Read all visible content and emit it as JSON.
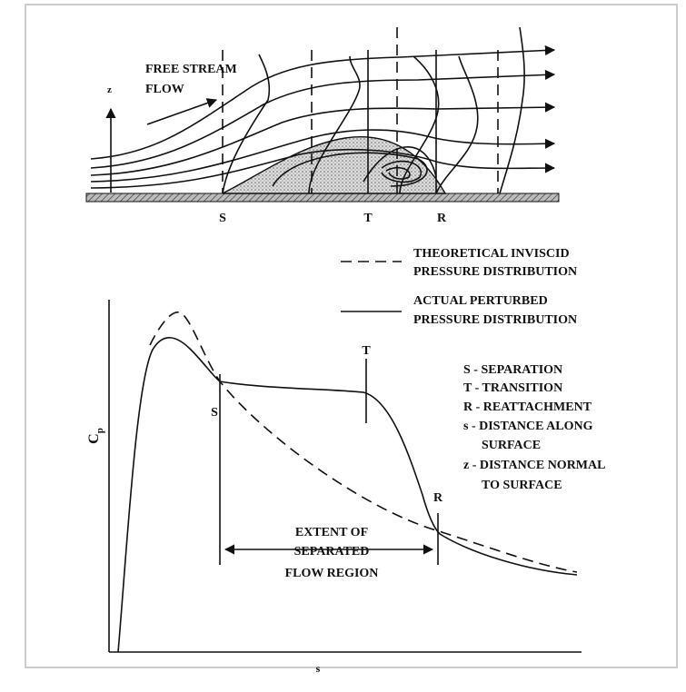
{
  "flow_diagram": {
    "stream_label": [
      "FREE STREAM",
      "FLOW"
    ],
    "axis_label": "z",
    "stations": [
      "S",
      "T",
      "R"
    ]
  },
  "legend": [
    {
      "lines": [
        "THEORETICAL INVISCID",
        "PRESSURE DISTRIBUTION"
      ]
    },
    {
      "lines": [
        "ACTUAL PERTURBED",
        "PRESSURE DISTRIBUTION"
      ]
    }
  ],
  "plot": {
    "y_label": "C",
    "y_label_sub": "p",
    "x_label": "s",
    "markers": [
      "S",
      "T",
      "R"
    ],
    "extent_label": [
      "EXTENT OF",
      "SEPARATED",
      "FLOW REGION"
    ]
  },
  "key": [
    "S - SEPARATION",
    "T - TRANSITION",
    "R - REATTACHMENT",
    "s -  DISTANCE ALONG",
    "SURFACE",
    "z - DISTANCE NORMAL",
    "TO SURFACE"
  ]
}
